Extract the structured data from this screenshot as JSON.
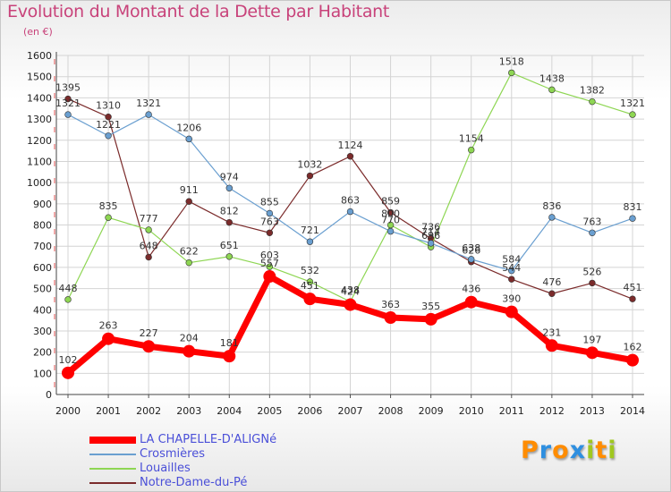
{
  "chart_data": {
    "type": "line",
    "title": "Evolution du Montant de la Dette par Habitant",
    "subtitle": "(en €)",
    "x": [
      "2000",
      "2001",
      "2002",
      "2003",
      "2004",
      "2005",
      "2006",
      "2007",
      "2008",
      "2009",
      "2010",
      "2011",
      "2012",
      "2013",
      "2014"
    ],
    "ylim": [
      0,
      1600
    ],
    "yticks": [
      0,
      100,
      200,
      300,
      400,
      500,
      600,
      700,
      800,
      900,
      1000,
      1100,
      1200,
      1300,
      1400,
      1500,
      1600
    ],
    "grid": true,
    "legend_position": "bottom-left",
    "series": [
      {
        "name": "LA CHAPELLE-D'ALIGNé",
        "color": "#ff0000",
        "values": [
          102,
          263,
          227,
          204,
          181,
          557,
          451,
          424,
          363,
          355,
          436,
          390,
          231,
          197,
          162
        ]
      },
      {
        "name": "Crosmières",
        "color": "#6a9fd0",
        "values": [
          1321,
          1221,
          1321,
          1206,
          974,
          855,
          721,
          863,
          770,
          714,
          638,
          584,
          836,
          763,
          831
        ]
      },
      {
        "name": "Louailles",
        "color": "#8ed653",
        "values": [
          448,
          835,
          777,
          622,
          651,
          603,
          532,
          438,
          800,
          696,
          1154,
          1518,
          1438,
          1382,
          1321
        ]
      },
      {
        "name": "Notre-Dame-du-Pé",
        "color": "#7b2b2b",
        "values": [
          1395,
          1310,
          648,
          911,
          812,
          763,
          1032,
          1124,
          859,
          736,
          626,
          544,
          476,
          526,
          451
        ]
      }
    ]
  },
  "logo": {
    "letters": [
      {
        "ch": "P",
        "color": "#ff8c00"
      },
      {
        "ch": "r",
        "color": "#2e8fe0"
      },
      {
        "ch": "o",
        "color": "#ff8c00"
      },
      {
        "ch": "x",
        "color": "#2e8fe0"
      },
      {
        "ch": "i",
        "color": "#a0c820"
      },
      {
        "ch": "t",
        "color": "#ff8c00"
      },
      {
        "ch": "i",
        "color": "#a0c820"
      }
    ]
  }
}
